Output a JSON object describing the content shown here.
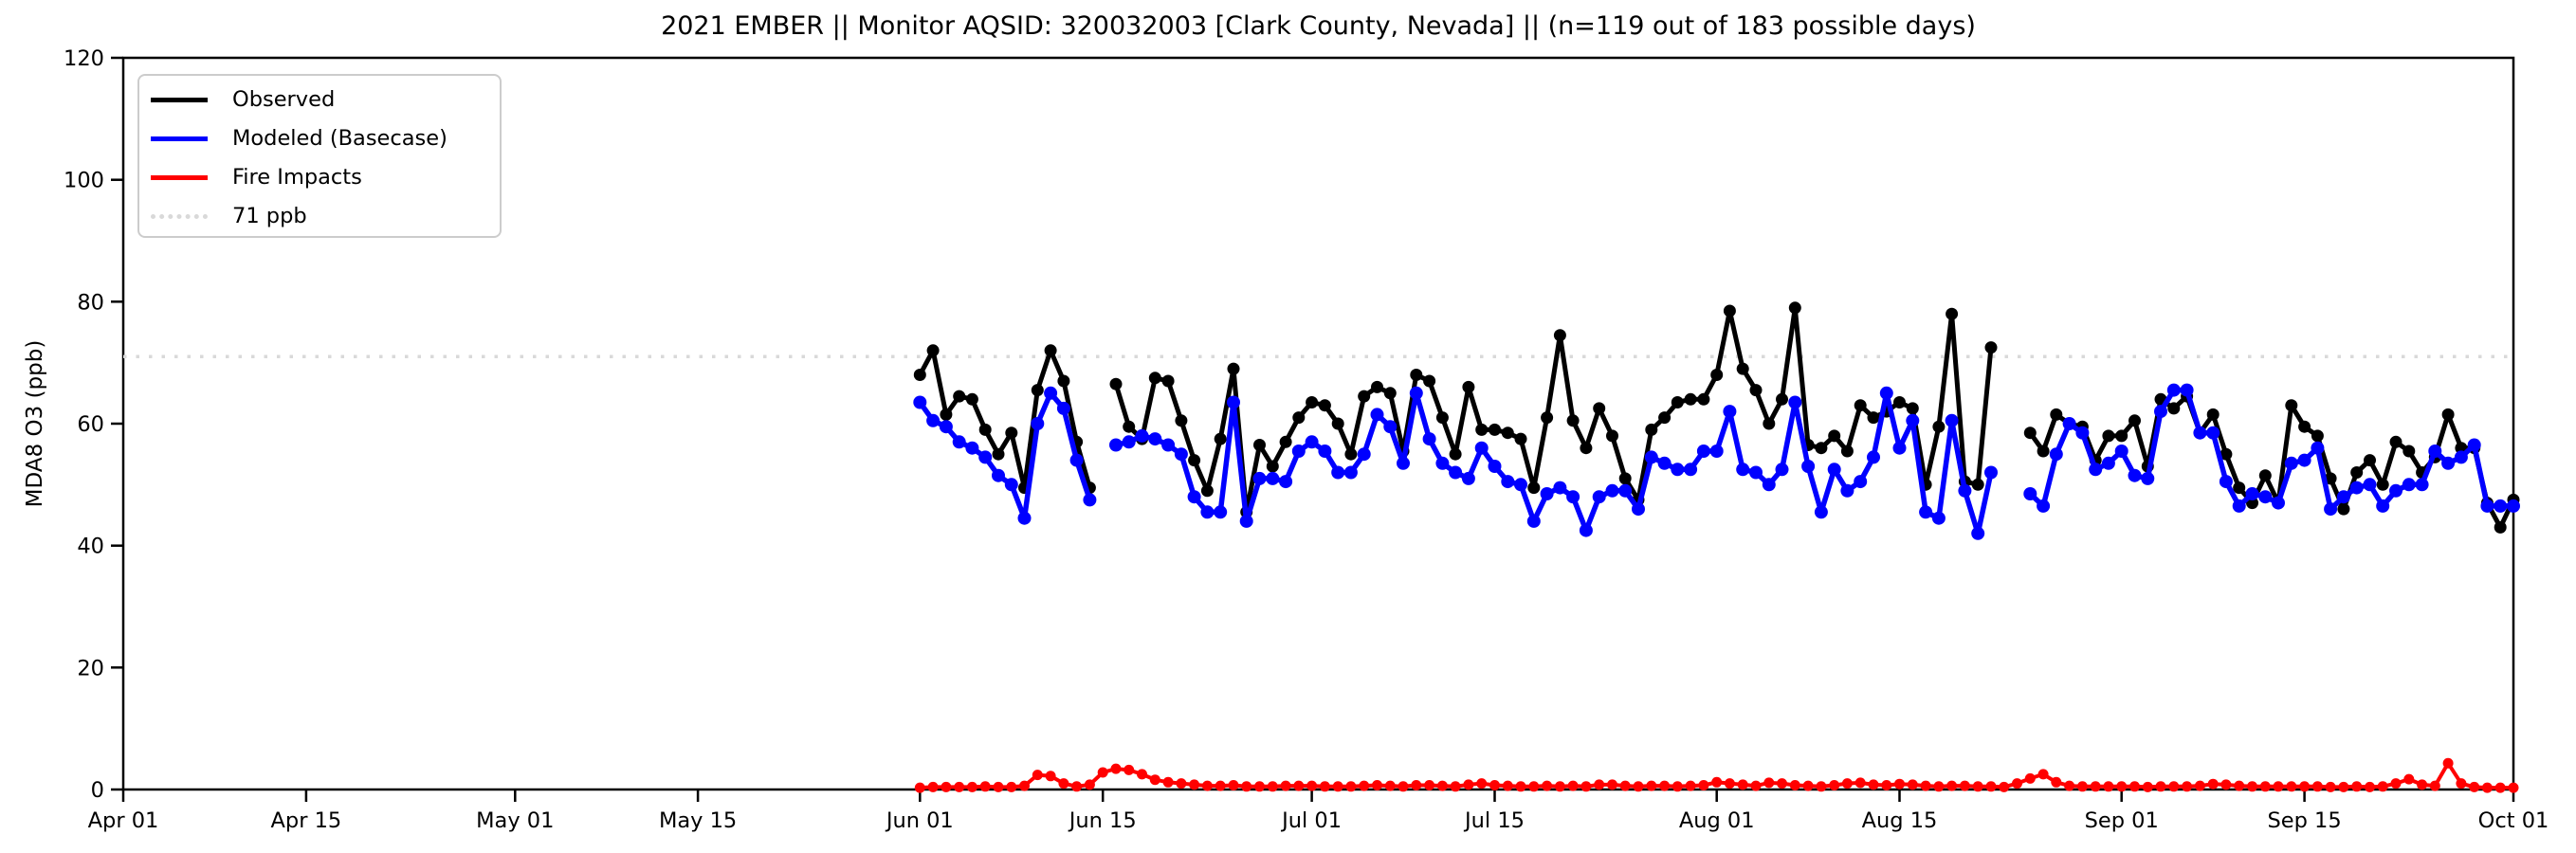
{
  "figure": {
    "background": "#ffffff",
    "accent_colors": {
      "observed": "#000000",
      "modeled": "#0000ff",
      "fire": "#ff0000",
      "threshold": "#d9d9d9"
    }
  },
  "chart_data": {
    "type": "line",
    "title": "2021 EMBER || Monitor AQSID: 320032003 [Clark County, Nevada] || (n=119 out of 183 possible days)",
    "xlabel": "",
    "ylabel": "MDA8 O3 (ppb)",
    "ylim": [
      0,
      120
    ],
    "y_ticks": [
      0,
      20,
      40,
      60,
      80,
      100,
      120
    ],
    "grid": false,
    "legend_position": "upper left",
    "x_axis_span_days": 183,
    "x_ticks": [
      {
        "label": "Apr 01",
        "day": 0
      },
      {
        "label": "Apr 15",
        "day": 14
      },
      {
        "label": "May 01",
        "day": 30
      },
      {
        "label": "May 15",
        "day": 44
      },
      {
        "label": "Jun 01",
        "day": 61
      },
      {
        "label": "Jun 15",
        "day": 75
      },
      {
        "label": "Jul 01",
        "day": 91
      },
      {
        "label": "Jul 15",
        "day": 105
      },
      {
        "label": "Aug 01",
        "day": 122
      },
      {
        "label": "Aug 15",
        "day": 136
      },
      {
        "label": "Sep 01",
        "day": 153
      },
      {
        "label": "Sep 15",
        "day": 167
      },
      {
        "label": "Oct 01",
        "day": 183
      }
    ],
    "threshold": {
      "label": "71 ppb",
      "value": 71,
      "color": "#d9d9d9",
      "style": "dotted"
    },
    "data_start_date": "Jun 01",
    "data_end_date": "Oct 01",
    "series": [
      {
        "name": "Observed",
        "color": "#000000",
        "start_day": 61,
        "values": [
          68,
          72,
          61.5,
          64.5,
          64,
          59,
          55,
          58.5,
          49.5,
          65.5,
          72,
          67,
          57,
          49.5,
          null,
          66.5,
          59.5,
          57.5,
          67.5,
          67,
          60.5,
          54,
          49,
          57.5,
          69,
          45.5,
          56.5,
          53,
          57,
          61,
          63.5,
          63,
          60,
          55,
          64.5,
          66,
          65,
          55.5,
          68,
          67,
          61,
          55,
          66,
          59,
          59,
          58.5,
          57.5,
          49.5,
          61,
          74.5,
          60.5,
          56,
          62.5,
          58,
          51,
          47.5,
          59,
          61,
          63.5,
          64,
          64,
          68,
          78.5,
          69,
          65.5,
          60,
          64,
          79,
          56.5,
          56,
          58,
          55.5,
          63,
          61,
          62,
          63.5,
          62.5,
          50,
          59.5,
          78,
          50.5,
          50,
          72.5,
          null,
          null,
          58.5,
          55.5,
          61.5,
          60,
          59.5,
          54,
          58,
          58,
          60.5,
          53,
          64,
          62.5,
          64.5,
          58.5,
          61.5,
          55,
          49.5,
          47,
          51.5,
          47,
          63,
          59.5,
          58,
          51,
          46,
          52,
          54,
          50,
          57,
          55.5,
          52,
          54.5,
          61.5,
          56,
          56,
          47,
          43,
          47.5
        ]
      },
      {
        "name": "Modeled (Basecase)",
        "color": "#0000ff",
        "start_day": 61,
        "values": [
          63.5,
          60.5,
          59.5,
          57,
          56,
          54.5,
          51.5,
          50,
          44.5,
          60,
          65,
          62.5,
          54,
          47.5,
          null,
          56.5,
          57,
          58,
          57.5,
          56.5,
          55,
          48,
          45.5,
          45.5,
          63.5,
          44,
          51,
          51,
          50.5,
          55.5,
          57,
          55.5,
          52,
          52,
          55,
          61.5,
          59.5,
          53.5,
          65,
          57.5,
          53.5,
          52,
          51,
          56,
          53,
          50.5,
          50,
          44,
          48.5,
          49.5,
          48,
          42.5,
          48,
          49,
          49,
          46,
          54.5,
          53.5,
          52.5,
          52.5,
          55.5,
          55.5,
          62,
          52.5,
          52,
          50,
          52.5,
          63.5,
          53,
          45.5,
          52.5,
          49,
          50.5,
          54.5,
          65,
          56,
          60.5,
          45.5,
          44.5,
          60.5,
          49,
          42,
          52,
          null,
          null,
          48.5,
          46.5,
          55,
          60,
          58.5,
          52.5,
          53.5,
          55.5,
          51.5,
          51,
          62,
          65.5,
          65.5,
          58.5,
          58.5,
          50.5,
          46.5,
          48.5,
          48,
          47,
          53.5,
          54,
          56,
          46,
          48,
          49.5,
          50,
          46.5,
          49,
          50,
          50,
          55.5,
          53.5,
          54.5,
          56.5,
          46.5,
          46.5,
          46.5
        ]
      },
      {
        "name": "Fire Impacts",
        "color": "#ff0000",
        "start_day": 61,
        "values": [
          0.3,
          0.4,
          0.4,
          0.4,
          0.4,
          0.5,
          0.4,
          0.4,
          0.6,
          2.4,
          2.2,
          1.0,
          0.5,
          0.8,
          2.8,
          3.4,
          3.2,
          2.5,
          1.6,
          1.2,
          1.0,
          0.8,
          0.6,
          0.6,
          0.7,
          0.5,
          0.5,
          0.5,
          0.6,
          0.6,
          0.6,
          0.5,
          0.5,
          0.5,
          0.6,
          0.7,
          0.6,
          0.5,
          0.7,
          0.7,
          0.6,
          0.5,
          0.8,
          1.0,
          0.7,
          0.6,
          0.5,
          0.5,
          0.6,
          0.5,
          0.6,
          0.5,
          0.8,
          0.8,
          0.6,
          0.5,
          0.6,
          0.6,
          0.5,
          0.6,
          0.7,
          1.2,
          1.0,
          0.8,
          0.6,
          1.1,
          1.0,
          0.7,
          0.6,
          0.5,
          0.7,
          1.0,
          1.1,
          0.8,
          0.7,
          0.9,
          0.8,
          0.6,
          0.5,
          0.6,
          0.6,
          0.5,
          0.5,
          0.4,
          1.0,
          1.8,
          2.5,
          1.2,
          0.6,
          0.5,
          0.5,
          0.5,
          0.5,
          0.5,
          0.4,
          0.5,
          0.5,
          0.5,
          0.6,
          0.9,
          0.8,
          0.6,
          0.5,
          0.5,
          0.5,
          0.5,
          0.5,
          0.5,
          0.4,
          0.4,
          0.5,
          0.4,
          0.5,
          1.0,
          1.7,
          0.8,
          0.6,
          4.3,
          1.0,
          0.4,
          0.3,
          0.3,
          0.3
        ]
      }
    ]
  }
}
